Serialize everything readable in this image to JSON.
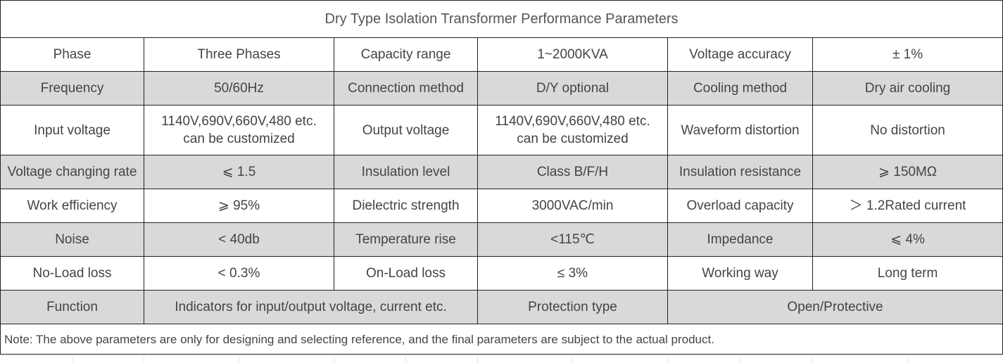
{
  "title": "Dry Type Isolation Transformer Performance Parameters",
  "rows": [
    {
      "cells": [
        "Phase",
        "Three Phases",
        "Capacity range",
        "1~2000KVA",
        "Voltage accuracy",
        "± 1%"
      ]
    },
    {
      "cells": [
        "Frequency",
        "50/60Hz",
        "Connection method",
        "D/Y optional",
        "Cooling method",
        "Dry air cooling"
      ]
    },
    {
      "cells": [
        "Input voltage",
        "1140V,690V,660V,480 etc.",
        "can be customized",
        "Output voltage",
        "1140V,690V,660V,480 etc.",
        "can be customized",
        "Waveform distortion",
        "No distortion"
      ]
    },
    {
      "cells": [
        "Voltage changing rate",
        "⩽ 1.5",
        "Insulation level",
        "Class B/F/H",
        "Insulation resistance",
        "⩾ 150MΩ"
      ]
    },
    {
      "cells": [
        "Work efficiency",
        "⩾ 95%",
        "Dielectric strength",
        "3000VAC/min",
        "Overload capacity",
        "＞ 1.2Rated current"
      ]
    },
    {
      "cells": [
        "Noise",
        "< 40db",
        "Temperature rise",
        "<115℃",
        "Impedance",
        "⩽ 4%"
      ]
    },
    {
      "cells": [
        "No-Load loss",
        "< 0.3%",
        "On-Load loss",
        "≤ 3%",
        "Working way",
        "Long term"
      ]
    },
    {
      "cells": [
        "Function",
        "Indicators for input/output voltage, current etc.",
        "Protection type",
        "Open/Protective"
      ]
    }
  ],
  "note": "Note: The above parameters are only for designing and selecting  reference, and the final parameters are subject to the actual product."
}
